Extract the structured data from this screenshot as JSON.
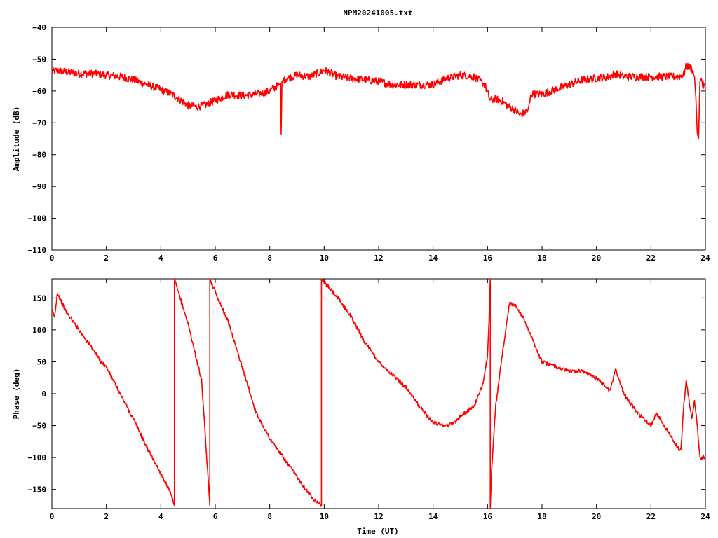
{
  "chart_data": [
    {
      "type": "line",
      "title": "NPM20241005.txt",
      "xlabel": "",
      "ylabel": "Amplitude (dB)",
      "xlim": [
        0,
        24
      ],
      "ylim": [
        -110,
        -40
      ],
      "xticks": [
        0,
        2,
        4,
        6,
        8,
        10,
        12,
        14,
        16,
        18,
        20,
        22,
        24
      ],
      "yticks": [
        -110,
        -100,
        -90,
        -80,
        -70,
        -60,
        -50,
        -40
      ],
      "grid": false,
      "color": "#ff0000",
      "noise": 1.2,
      "series": [
        {
          "x": [
            0,
            0.2,
            0.5,
            1,
            1.5,
            2,
            2.5,
            3,
            3.5,
            4,
            4.5,
            5,
            5.3,
            5.6,
            6,
            6.5,
            7,
            7.5,
            8,
            8.35,
            8.4,
            8.42,
            8.45,
            8.5,
            9,
            9.5,
            10,
            10.5,
            11,
            11.5,
            12,
            12.5,
            13,
            13.5,
            14,
            14.5,
            15,
            15.5,
            15.9,
            16.1,
            16.3,
            16.5,
            16.8,
            17,
            17.2,
            17.5,
            17.6,
            18,
            18.5,
            19,
            19.5,
            20,
            20.5,
            20.7,
            21,
            21.5,
            22,
            22.5,
            23,
            23.2,
            23.3,
            23.5,
            23.6,
            23.65,
            23.7,
            23.75,
            23.8,
            23.85,
            23.9,
            24
          ],
          "values": [
            -54,
            -53.5,
            -54,
            -54.5,
            -54.5,
            -55,
            -55.5,
            -56.5,
            -58,
            -59.5,
            -61.5,
            -64.5,
            -65,
            -64.5,
            -63,
            -61,
            -61.5,
            -61,
            -60,
            -58,
            -57.5,
            -73.5,
            -57,
            -56.5,
            -55,
            -55.5,
            -53.5,
            -55.5,
            -56,
            -56.5,
            -57,
            -58,
            -58,
            -58,
            -58,
            -56,
            -55,
            -55.5,
            -58,
            -63,
            -62.5,
            -63,
            -65,
            -66,
            -67.5,
            -66,
            -61,
            -61,
            -59.5,
            -58,
            -56.5,
            -56,
            -55.5,
            -54.5,
            -55.5,
            -55.5,
            -55.5,
            -55.5,
            -55.5,
            -55,
            -52,
            -53,
            -55.5,
            -62,
            -73,
            -75,
            -57,
            -56,
            -58,
            -59
          ]
        }
      ]
    },
    {
      "type": "line",
      "title": "",
      "xlabel": "Time (UT)",
      "ylabel": "Phase (deg)",
      "xlim": [
        0,
        24
      ],
      "ylim": [
        -180,
        180
      ],
      "xticks": [
        0,
        2,
        4,
        6,
        8,
        10,
        12,
        14,
        16,
        18,
        20,
        22,
        24
      ],
      "yticks": [
        -150,
        -100,
        -50,
        0,
        50,
        100,
        150
      ],
      "grid": false,
      "color": "#ff0000",
      "noise": 3,
      "series": [
        {
          "x": [
            0,
            0.1,
            0.2,
            0.5,
            1,
            1.5,
            1.8,
            2,
            2.5,
            3,
            3.5,
            4,
            4.3,
            4.5,
            4.5,
            4.6,
            5,
            5.5,
            5.8,
            5.8,
            6,
            6.5,
            7,
            7.5,
            8,
            8.5,
            9,
            9.5,
            9.9,
            9.9,
            10,
            10.5,
            11,
            11.5,
            12,
            12.5,
            13,
            13.5,
            14,
            14.5,
            14.8,
            15,
            15.5,
            15.8,
            16,
            16.05,
            16.1,
            16.1,
            16.15,
            16.3,
            16.6,
            16.8,
            17,
            17.3,
            17.5,
            17.7,
            18,
            19,
            19.5,
            20,
            20.5,
            20.6,
            20.7,
            21,
            21.5,
            22,
            22.2,
            22.5,
            23,
            23.1,
            23.2,
            23.3,
            23.5,
            23.6,
            23.7,
            23.8,
            24
          ],
          "values": [
            130,
            120,
            158,
            130,
            100,
            70,
            50,
            42,
            0,
            -40,
            -85,
            -125,
            -150,
            -175,
            180,
            165,
            110,
            20,
            -175,
            180,
            160,
            110,
            40,
            -30,
            -70,
            -100,
            -130,
            -160,
            -175,
            180,
            175,
            150,
            120,
            80,
            50,
            30,
            10,
            -20,
            -45,
            -50,
            -45,
            -35,
            -20,
            10,
            60,
            110,
            180,
            -180,
            -120,
            -20,
            80,
            140,
            140,
            120,
            100,
            80,
            50,
            35,
            35,
            25,
            5,
            20,
            40,
            0,
            -30,
            -50,
            -30,
            -50,
            -85,
            -90,
            -20,
            20,
            -40,
            -10,
            -50,
            -100,
            -100
          ]
        }
      ]
    }
  ]
}
